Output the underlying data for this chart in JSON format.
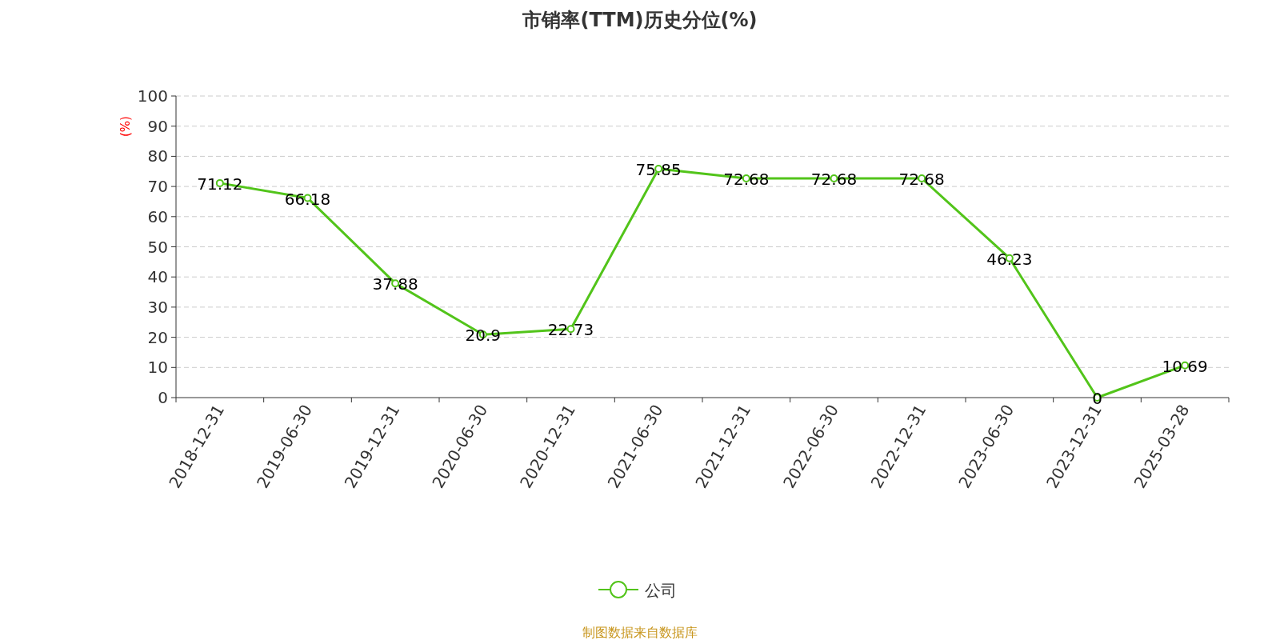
{
  "chart_data": {
    "type": "line",
    "title": "市销率(TTM)历史分位(%)",
    "ylabel": "(%)",
    "categories": [
      "2018-12-31",
      "2019-06-30",
      "2019-12-31",
      "2020-06-30",
      "2020-12-31",
      "2021-06-30",
      "2021-12-31",
      "2022-06-30",
      "2022-12-31",
      "2023-06-30",
      "2023-12-31",
      "2025-03-28"
    ],
    "series": [
      {
        "name": "公司",
        "color": "#52c41a",
        "values": [
          71.12,
          66.18,
          37.88,
          20.9,
          22.73,
          75.85,
          72.68,
          72.68,
          72.68,
          46.23,
          0,
          10.69
        ]
      }
    ],
    "ylim": [
      0,
      100
    ],
    "yticks": [
      0,
      10,
      20,
      30,
      40,
      50,
      60,
      70,
      80,
      90,
      100
    ],
    "data_labels": true,
    "grid": "y",
    "legend": "bottom",
    "marker": "circle",
    "line_style": "solid",
    "annotations": [
      "制图数据来自数据库"
    ]
  }
}
